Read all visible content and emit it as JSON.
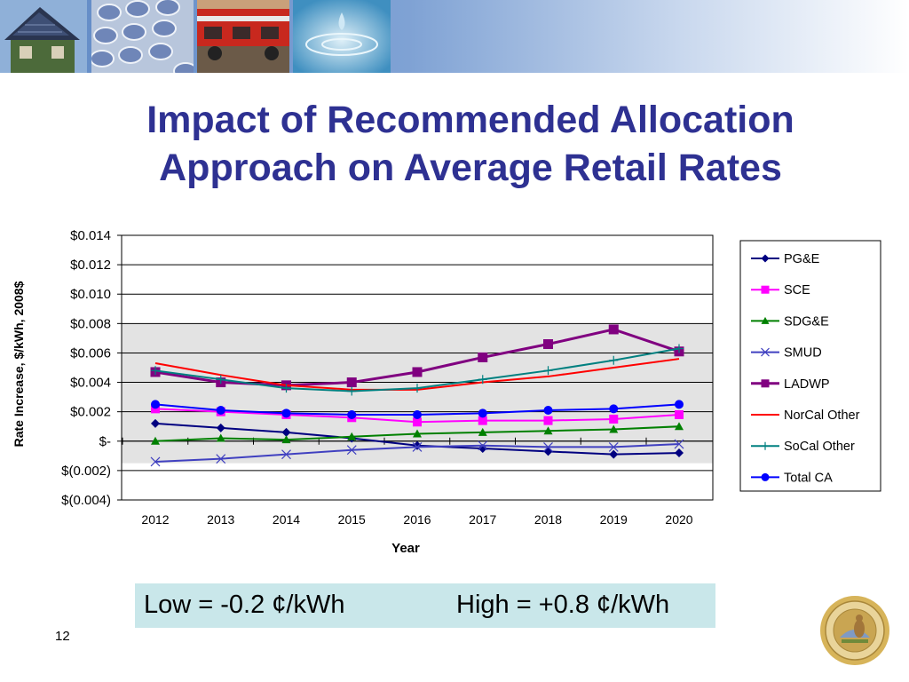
{
  "slide": {
    "title_line1": "Impact of Recommended Allocation",
    "title_line2": "Approach on Average Retail Rates",
    "note_low": "Low = -0.2 ¢/kWh",
    "note_high": "High = +0.8 ¢/kWh",
    "page_number": "12",
    "title_color": "#2e3192",
    "note_bg_color": "#c9e7ea"
  },
  "chart_data": {
    "type": "line",
    "title": "",
    "xlabel": "Year",
    "ylabel": "Rate Increase, $/kWh, 2008$",
    "categories": [
      "2012",
      "2013",
      "2014",
      "2015",
      "2016",
      "2017",
      "2018",
      "2019",
      "2020"
    ],
    "ylim": [
      -0.004,
      0.014
    ],
    "yticks": [
      -0.004,
      -0.002,
      0,
      0.002,
      0.004,
      0.006,
      0.008,
      0.01,
      0.012,
      0.014
    ],
    "ytick_labels": [
      "$(0.004)",
      "$(0.002)",
      "$-",
      "$0.002",
      "$0.004",
      "$0.006",
      "$0.008",
      "$0.010",
      "$0.012",
      "$0.014"
    ],
    "shaded_band": [
      -0.0015,
      0.008
    ],
    "grid": "horizontal",
    "legend_position": "right",
    "series": [
      {
        "name": "PG&E",
        "color": "#000080",
        "marker": "diamond",
        "values": [
          0.0012,
          0.0009,
          0.0006,
          0.0002,
          -0.0003,
          -0.0005,
          -0.0007,
          -0.0009,
          -0.0008
        ]
      },
      {
        "name": "SCE",
        "color": "#ff00ff",
        "marker": "square",
        "values": [
          0.0022,
          0.002,
          0.0018,
          0.0016,
          0.0013,
          0.0014,
          0.0014,
          0.0015,
          0.0018
        ]
      },
      {
        "name": "SDG&E",
        "color": "#008000",
        "marker": "triangle",
        "values": [
          0.0,
          0.0002,
          0.0001,
          0.0003,
          0.0005,
          0.0006,
          0.0007,
          0.0008,
          0.001
        ]
      },
      {
        "name": "SMUD",
        "color": "#4040c0",
        "marker": "x",
        "values": [
          -0.0014,
          -0.0012,
          -0.0009,
          -0.0006,
          -0.0004,
          -0.0003,
          -0.0004,
          -0.0004,
          -0.0002
        ]
      },
      {
        "name": "LADWP",
        "color": "#800080",
        "marker": "square",
        "values": [
          0.0047,
          0.004,
          0.0038,
          0.004,
          0.0047,
          0.0057,
          0.0066,
          0.0076,
          0.0061
        ]
      },
      {
        "name": "NorCal Other",
        "color": "#ff0000",
        "marker": "none",
        "values": [
          0.0053,
          0.0045,
          0.0038,
          0.0035,
          0.0035,
          0.004,
          0.0044,
          0.005,
          0.0056
        ]
      },
      {
        "name": "SoCal Other",
        "color": "#008080",
        "marker": "plus",
        "values": [
          0.0048,
          0.0042,
          0.0036,
          0.0034,
          0.0036,
          0.0042,
          0.0048,
          0.0055,
          0.0063
        ]
      },
      {
        "name": "Total CA",
        "color": "#0000ff",
        "marker": "circle",
        "values": [
          0.0025,
          0.0021,
          0.0019,
          0.0018,
          0.0018,
          0.0019,
          0.0021,
          0.0022,
          0.0025
        ]
      }
    ]
  }
}
